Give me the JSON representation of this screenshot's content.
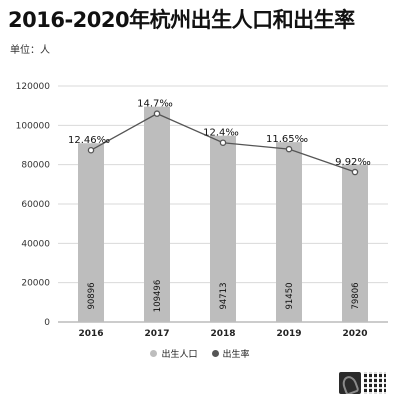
{
  "header": {
    "title": "2016-2020年杭州出生人口和出生率",
    "unit": "单位：人"
  },
  "chart_data": {
    "type": "bar",
    "title": "2016-2020年杭州出生人口和出生率",
    "categories": [
      "2016",
      "2017",
      "2018",
      "2019",
      "2020"
    ],
    "ylim": [
      0,
      120000
    ],
    "yticks": [
      0,
      20000,
      40000,
      60000,
      80000,
      100000,
      120000
    ],
    "grid": true,
    "legend_position": "bottom",
    "series": [
      {
        "name": "出生人口",
        "type": "bar",
        "values": [
          90896,
          109496,
          94713,
          91450,
          79806
        ],
        "labels": [
          "90896",
          "109496",
          "94713",
          "91450",
          "79806"
        ],
        "color": "#bdbdbd"
      },
      {
        "name": "出生率",
        "type": "line",
        "values": [
          12.46,
          14.7,
          12.4,
          11.65,
          9.92
        ],
        "labels": [
          "12.46‰",
          "14.7‰",
          "12.4‰",
          "11.65‰",
          "9.92‰"
        ],
        "color": "#555555"
      }
    ]
  }
}
